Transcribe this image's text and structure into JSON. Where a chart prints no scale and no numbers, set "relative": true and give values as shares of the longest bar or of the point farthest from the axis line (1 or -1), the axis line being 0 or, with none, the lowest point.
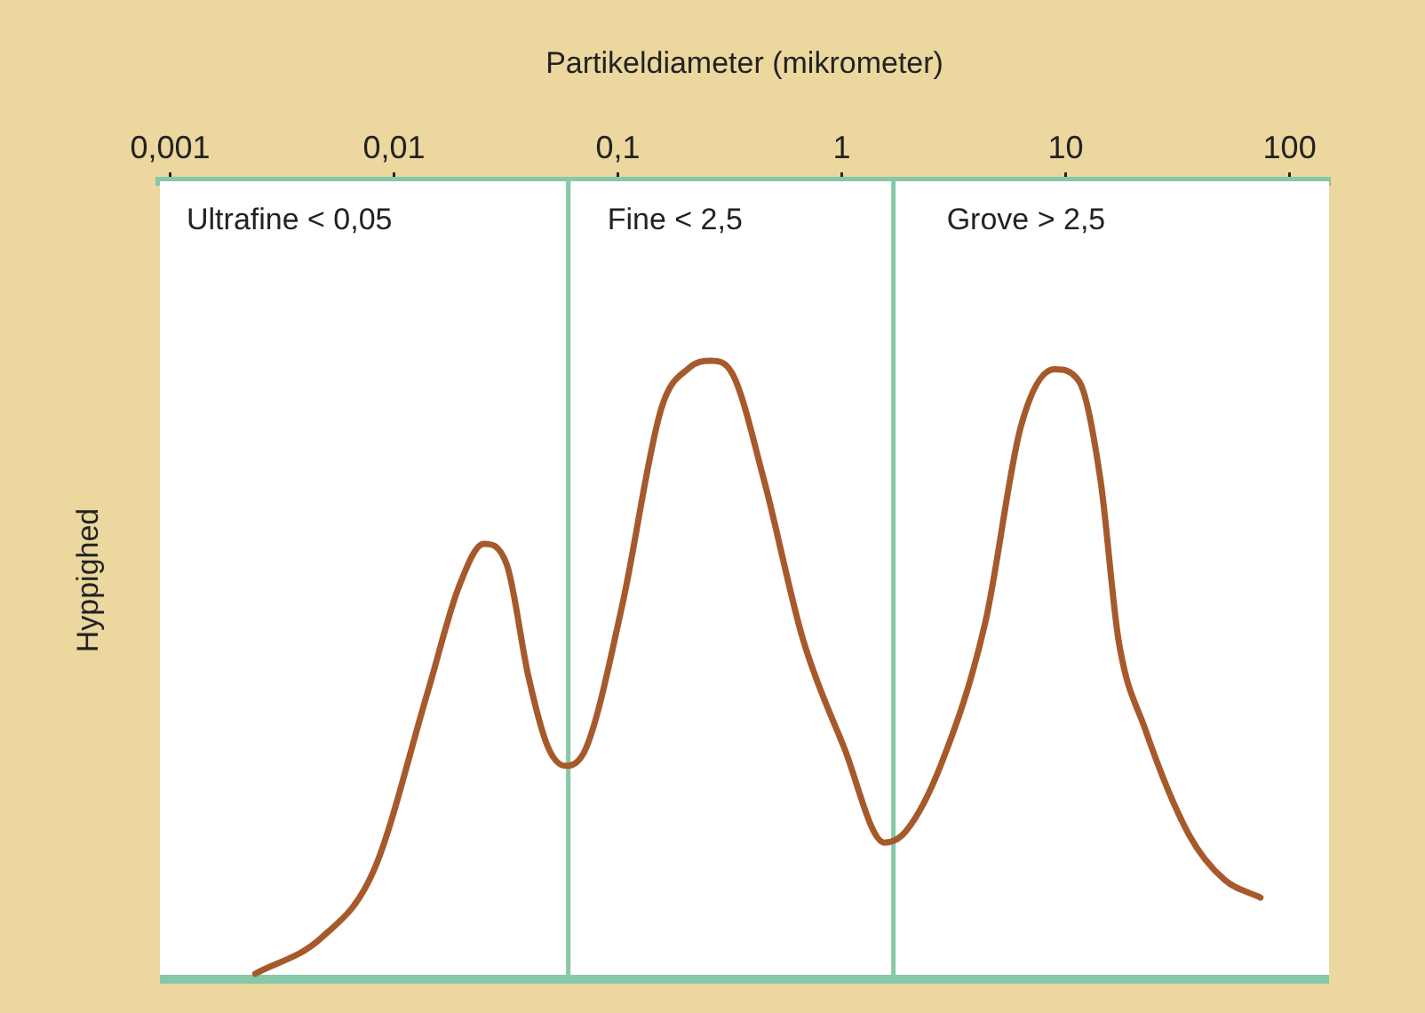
{
  "chart_data": {
    "type": "line",
    "xlabel": "Partikeldiameter (mikrometer)",
    "ylabel": "Hyppighed",
    "relative": true,
    "log": "x",
    "legend": false,
    "marker": "none",
    "line_style": "solid",
    "xlim": [
      0.0009,
      150
    ],
    "xticks": [
      {
        "value": 0.001,
        "label": "0,001"
      },
      {
        "value": 0.01,
        "label": "0,01"
      },
      {
        "value": 0.1,
        "label": "0,1"
      },
      1,
      10,
      100
    ],
    "series": [
      {
        "color": "#a65a2c",
        "x": [
          0.0024,
          0.0047,
          0.0081,
          0.0141,
          0.0195,
          0.0252,
          0.0319,
          0.0398,
          0.0486,
          0.0583,
          0.0725,
          0.1047,
          0.156,
          0.209,
          0.26,
          0.323,
          0.449,
          0.671,
          1.02,
          1.55,
          1.93,
          2.78,
          4.38,
          6.31,
          8.91,
          11.5,
          14.3,
          17.2,
          22.6,
          35.6,
          51.1,
          74.1
        ],
        "values": [
          0.009,
          0.066,
          0.175,
          0.463,
          0.635,
          0.704,
          0.67,
          0.49,
          0.376,
          0.345,
          0.376,
          0.606,
          0.922,
          0.989,
          1,
          0.98,
          0.807,
          0.549,
          0.376,
          0.221,
          0.239,
          0.348,
          0.578,
          0.894,
          0.986,
          0.966,
          0.807,
          0.549,
          0.405,
          0.233,
          0.161,
          0.132
        ]
      }
    ],
    "ref_lines": [
      {
        "axis": "x",
        "value": 0.06,
        "color": "#86c8a8"
      },
      {
        "axis": "x",
        "value": 1.7,
        "color": "#86c8a8"
      }
    ],
    "annotations": [
      "Ultrafine < 0,05",
      "Fine < 2,5",
      "Grove > 2,5"
    ]
  }
}
